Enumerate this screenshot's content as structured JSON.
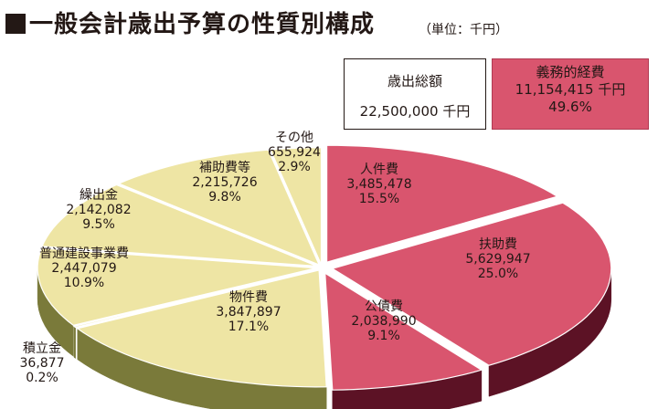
{
  "header": {
    "title": "一般会計歳出予算の性質別構成",
    "unit": "（単位：千円）"
  },
  "summary": {
    "total_label": "歳出総額",
    "total_value": "22,500,000 千円",
    "obligatory_label": "義務的経費",
    "obligatory_value": "11,154,415 千円",
    "obligatory_percent": "49.6%"
  },
  "colors": {
    "obligatory_top": "#d9556e",
    "obligatory_side": "#5c1225",
    "other_top": "#eee5a4",
    "other_side": "#7a7a3a",
    "divider_dark": "#231815"
  },
  "chart_data": {
    "type": "pie",
    "style": "3d-exploded",
    "title": "一般会計歳出予算の性質別構成",
    "unit": "（単位：千円）",
    "total": 22500000,
    "slices": [
      {
        "label": "人件費",
        "value": 3485478,
        "value_text": "3,485,478",
        "percent": 15.5,
        "percent_text": "15.5%",
        "group": "obligatory"
      },
      {
        "label": "扶助費",
        "value": 5629947,
        "value_text": "5,629,947",
        "percent": 25.0,
        "percent_text": "25.0%",
        "group": "obligatory"
      },
      {
        "label": "公債費",
        "value": 2038990,
        "value_text": "2,038,990",
        "percent": 9.1,
        "percent_text": "9.1%",
        "group": "obligatory"
      },
      {
        "label": "物件費",
        "value": 3847897,
        "value_text": "3,847,897",
        "percent": 17.1,
        "percent_text": "17.1%",
        "group": "other"
      },
      {
        "label": "積立金",
        "value": 36877,
        "value_text": "36,877",
        "percent": 0.2,
        "percent_text": "0.2%",
        "group": "other"
      },
      {
        "label": "普通建設事業費",
        "value": 2447079,
        "value_text": "2,447,079",
        "percent": 10.9,
        "percent_text": "10.9%",
        "group": "other"
      },
      {
        "label": "繰出金",
        "value": 2142082,
        "value_text": "2,142,082",
        "percent": 9.5,
        "percent_text": "9.5%",
        "group": "other"
      },
      {
        "label": "補助費等",
        "value": 2215726,
        "value_text": "2,215,726",
        "percent": 9.8,
        "percent_text": "9.8%",
        "group": "other"
      },
      {
        "label": "その他",
        "value": 655924,
        "value_text": "655,924",
        "percent": 2.9,
        "percent_text": "2.9%",
        "group": "other"
      }
    ]
  }
}
